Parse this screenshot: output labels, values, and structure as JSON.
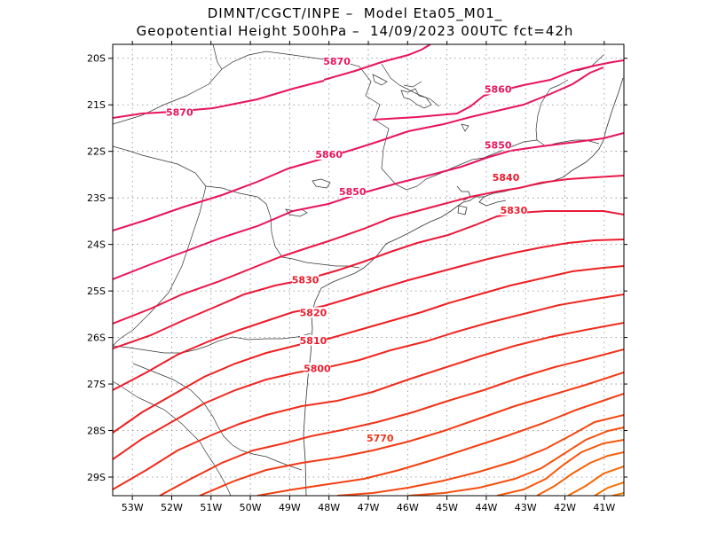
{
  "title_line1": "DIMNT/CGCT/INPE –  Model Eta05_M01_",
  "title_line2": "Geopotential Height 500hPa –  14/09/2023 00UTC fct=42h",
  "map": {
    "lon_range": [
      -53.5,
      -40.5
    ],
    "lat_range": [
      -29.4,
      -19.7
    ],
    "grid": true,
    "lon_ticks": [
      "53W",
      "52W",
      "51W",
      "50W",
      "49W",
      "48W",
      "47W",
      "46W",
      "45W",
      "44W",
      "43W",
      "42W",
      "41W"
    ],
    "lat_ticks": [
      "20S",
      "21S",
      "22S",
      "23S",
      "24S",
      "25S",
      "26S",
      "27S",
      "28S",
      "29S"
    ]
  },
  "chart_data": {
    "type": "contour",
    "variable": "Geopotential Height 500hPa",
    "contour_interval": 10,
    "labels": [
      {
        "text": "5870",
        "lon": -47.8,
        "lat": -20.1
      },
      {
        "text": "5870",
        "lon": -51.8,
        "lat": -21.2
      },
      {
        "text": "5860",
        "lon": -43.7,
        "lat": -20.7
      },
      {
        "text": "5860",
        "lon": -48.0,
        "lat": -22.1
      },
      {
        "text": "5850",
        "lon": -43.7,
        "lat": -21.9
      },
      {
        "text": "5850",
        "lon": -47.4,
        "lat": -22.9
      },
      {
        "text": "5840",
        "lon": -43.5,
        "lat": -22.6
      },
      {
        "text": "5830",
        "lon": -43.3,
        "lat": -23.3
      },
      {
        "text": "5830",
        "lon": -48.6,
        "lat": -24.8
      },
      {
        "text": "5820",
        "lon": -48.4,
        "lat": -25.5
      },
      {
        "text": "5810",
        "lon": -48.4,
        "lat": -26.1
      },
      {
        "text": "5800",
        "lon": -48.3,
        "lat": -26.7
      },
      {
        "text": "5770",
        "lon": -46.7,
        "lat": -28.2
      }
    ]
  }
}
